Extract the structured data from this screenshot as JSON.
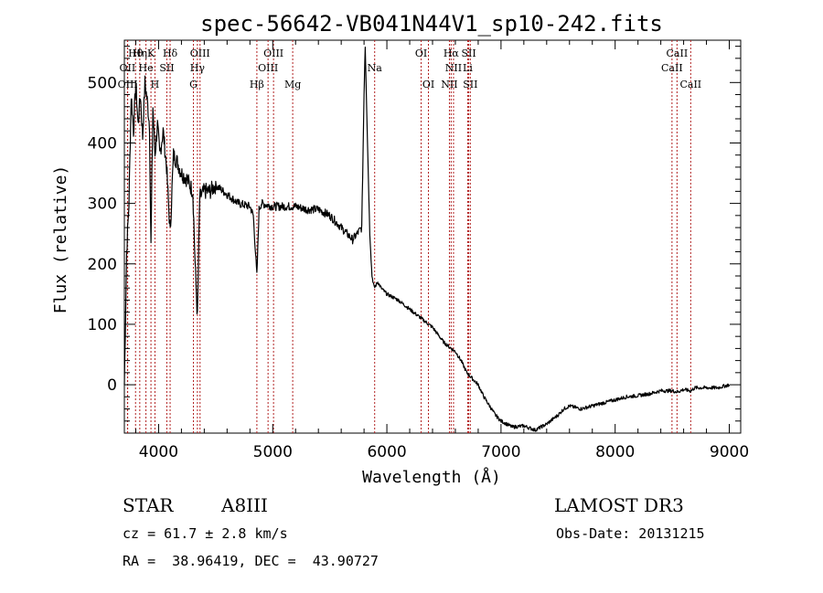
{
  "chart_data": {
    "type": "line",
    "title": "spec-56642-VB041N44V1_sp10-242.fits",
    "xlabel": "Wavelength (Å)",
    "ylabel": "Flux (relative)",
    "xlim": [
      3700,
      9100
    ],
    "ylim": [
      -80,
      570
    ],
    "x_ticks": [
      4000,
      5000,
      6000,
      7000,
      8000,
      9000
    ],
    "y_ticks": [
      0,
      100,
      200,
      300,
      400,
      500
    ],
    "x_tick_labels": [
      "4000",
      "5000",
      "6000",
      "7000",
      "8000",
      "9000"
    ],
    "y_tick_labels": [
      "0",
      "100",
      "200",
      "300",
      "400",
      "500"
    ],
    "series": [
      {
        "name": "spectrum",
        "x": [
          3700,
          3720,
          3740,
          3760,
          3780,
          3800,
          3820,
          3840,
          3860,
          3880,
          3900,
          3920,
          3933,
          3950,
          3968,
          3990,
          4010,
          4040,
          4070,
          4101,
          4130,
          4160,
          4200,
          4250,
          4300,
          4320,
          4340,
          4360,
          4400,
          4450,
          4500,
          4600,
          4700,
          4800,
          4830,
          4861,
          4880,
          4900,
          5000,
          5100,
          5200,
          5300,
          5400,
          5500,
          5600,
          5700,
          5780,
          5800,
          5810,
          5830,
          5850,
          5870,
          5890,
          5920,
          5950,
          6000,
          6100,
          6200,
          6300,
          6400,
          6500,
          6563,
          6600,
          6650,
          6700,
          6750,
          6800,
          6850,
          6900,
          6950,
          7000,
          7100,
          7200,
          7300,
          7400,
          7500,
          7550,
          7600,
          7700,
          7800,
          7900,
          8000,
          8100,
          8200,
          8300,
          8400,
          8500,
          8542,
          8600,
          8662,
          8700,
          8800,
          8900,
          9000
        ],
        "values": [
          0,
          220,
          300,
          480,
          420,
          500,
          430,
          480,
          410,
          500,
          470,
          430,
          230,
          460,
          380,
          430,
          380,
          420,
          360,
          250,
          380,
          370,
          350,
          340,
          320,
          200,
          110,
          310,
          320,
          320,
          330,
          315,
          300,
          295,
          280,
          180,
          290,
          300,
          295,
          295,
          295,
          290,
          290,
          280,
          260,
          240,
          260,
          480,
          560,
          400,
          250,
          180,
          160,
          170,
          160,
          150,
          140,
          125,
          110,
          95,
          70,
          60,
          55,
          40,
          20,
          10,
          0,
          -20,
          -35,
          -50,
          -60,
          -70,
          -68,
          -75,
          -65,
          -50,
          -40,
          -35,
          -40,
          -35,
          -30,
          -25,
          -20,
          -18,
          -15,
          -10,
          -10,
          -12,
          -8,
          -10,
          -5,
          -5,
          -5,
          0
        ]
      }
    ],
    "line_labels": [
      {
        "label": "Hθ",
        "wavelength": 3798,
        "row": 1
      },
      {
        "label": "OII",
        "wavelength": 3727,
        "row": 2
      },
      {
        "label": "OIII",
        "wavelength": 3729,
        "row": 3
      },
      {
        "label": "Hη",
        "wavelength": 3835,
        "row": 1
      },
      {
        "label": "K",
        "wavelength": 3933,
        "row": 1
      },
      {
        "label": "He",
        "wavelength": 3889,
        "row": 2
      },
      {
        "label": "SII",
        "wavelength": 4072,
        "row": 2
      },
      {
        "label": "H",
        "wavelength": 3968,
        "row": 3
      },
      {
        "label": "Hδ",
        "wavelength": 4101,
        "row": 1
      },
      {
        "label": "OIII",
        "wavelength": 4363,
        "row": 1
      },
      {
        "label": "Hγ",
        "wavelength": 4340,
        "row": 2
      },
      {
        "label": "G",
        "wavelength": 4305,
        "row": 3
      },
      {
        "label": "OIII",
        "wavelength": 5007,
        "row": 1
      },
      {
        "label": "OIII",
        "wavelength": 4959,
        "row": 2
      },
      {
        "label": "Hβ",
        "wavelength": 4861,
        "row": 3
      },
      {
        "label": "Mg",
        "wavelength": 5175,
        "row": 3
      },
      {
        "label": "Na",
        "wavelength": 5893,
        "row": 2
      },
      {
        "label": "OI",
        "wavelength": 6300,
        "row": 1
      },
      {
        "label": "OI",
        "wavelength": 6364,
        "row": 3
      },
      {
        "label": "Hα",
        "wavelength": 6563,
        "row": 1
      },
      {
        "label": "SII",
        "wavelength": 6717,
        "row": 1
      },
      {
        "label": "NII",
        "wavelength": 6584,
        "row": 2
      },
      {
        "label": "Li",
        "wavelength": 6708,
        "row": 2
      },
      {
        "label": "NII",
        "wavelength": 6548,
        "row": 3
      },
      {
        "label": "SII",
        "wavelength": 6731,
        "row": 3
      },
      {
        "label": "CaII",
        "wavelength": 8542,
        "row": 1
      },
      {
        "label": "CaII",
        "wavelength": 8498,
        "row": 2
      },
      {
        "label": "CaII",
        "wavelength": 8662,
        "row": 3
      }
    ]
  },
  "footer": {
    "object_class": "STAR",
    "subclass": "A8III",
    "survey": "LAMOST DR3",
    "cz": "cz = 61.7 ± 2.8 km/s",
    "obs_date": "Obs-Date: 20131215",
    "coords": "RA =  38.96419, DEC =  43.90727"
  },
  "colors": {
    "line": "#000000",
    "marker": "#b22222",
    "text": "#000000",
    "background": "#ffffff"
  }
}
